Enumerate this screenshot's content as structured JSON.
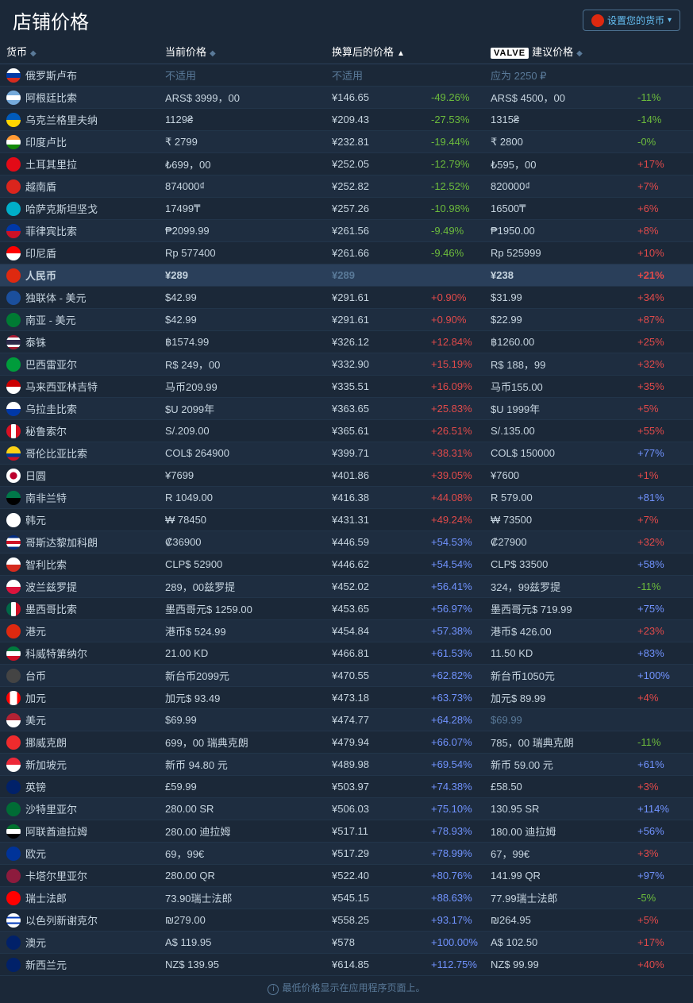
{
  "title": "店铺价格",
  "set_currency_button": "设置您的货币",
  "set_currency_flag_class": "flag-cn",
  "columns": {
    "currency": "货币",
    "current": "当前价格",
    "converted": "换算后的价格",
    "suggested_prefix_logo": "VALVE",
    "suggested": "建议价格"
  },
  "footer_note": "最低价格显示在应用程序页面上。",
  "colors": {
    "background": "#1b2838",
    "row_alt": "#1e2d40",
    "highlight_row": "#2a3f5a",
    "text_primary": "#c6d4df",
    "text_heading": "#ffffff",
    "muted": "#5a7a99",
    "pct_green": "#6cbb3c",
    "pct_red": "#e24a4a",
    "pct_blue": "#7193ff",
    "link_blue": "#66c0f4"
  },
  "rows": [
    {
      "flag": "flag-ru",
      "name": "俄罗斯卢布",
      "current": "不适用",
      "current_muted": true,
      "converted": "不适用",
      "converted_muted": true,
      "pct": "",
      "pct_class": "",
      "suggested": "应为 2250 ₽",
      "suggested_muted": true,
      "sug_pct": "",
      "sug_pct_class": ""
    },
    {
      "flag": "flag-ar",
      "name": "阿根廷比索",
      "current": "ARS$ 3999，00",
      "converted": "¥146.65",
      "pct": "-49.26%",
      "pct_class": "pct-green",
      "suggested": "ARS$ 4500，00",
      "sug_pct": "-11%",
      "sug_pct_class": "pct-green"
    },
    {
      "flag": "flag-ua",
      "name": "乌克兰格里夫纳",
      "current": "1129₴",
      "converted": "¥209.43",
      "pct": "-27.53%",
      "pct_class": "pct-green",
      "suggested": "1315₴",
      "sug_pct": "-14%",
      "sug_pct_class": "pct-green"
    },
    {
      "flag": "flag-in",
      "name": "印度卢比",
      "current": "₹ 2799",
      "converted": "¥232.81",
      "pct": "-19.44%",
      "pct_class": "pct-green",
      "suggested": "₹ 2800",
      "sug_pct": "-0%",
      "sug_pct_class": "pct-green"
    },
    {
      "flag": "flag-tr",
      "name": "土耳其里拉",
      "current": "₺699，00",
      "converted": "¥252.05",
      "pct": "-12.79%",
      "pct_class": "pct-green",
      "suggested": "₺595，00",
      "sug_pct": "+17%",
      "sug_pct_class": "pct-red"
    },
    {
      "flag": "flag-vn",
      "name": "越南盾",
      "current": "874000₫",
      "converted": "¥252.82",
      "pct": "-12.52%",
      "pct_class": "pct-green",
      "suggested": "820000₫",
      "sug_pct": "+7%",
      "sug_pct_class": "pct-red"
    },
    {
      "flag": "flag-kz",
      "name": "哈萨克斯坦坚戈",
      "current": "17499₸",
      "converted": "¥257.26",
      "pct": "-10.98%",
      "pct_class": "pct-green",
      "suggested": "16500₸",
      "sug_pct": "+6%",
      "sug_pct_class": "pct-red"
    },
    {
      "flag": "flag-ph",
      "name": "菲律宾比索",
      "current": "₱2099.99",
      "converted": "¥261.56",
      "pct": "-9.49%",
      "pct_class": "pct-green",
      "suggested": "₱1950.00",
      "sug_pct": "+8%",
      "sug_pct_class": "pct-red"
    },
    {
      "flag": "flag-id",
      "name": "印尼盾",
      "current": "Rp 577400",
      "converted": "¥261.66",
      "pct": "-9.46%",
      "pct_class": "pct-green",
      "suggested": "Rp 525999",
      "sug_pct": "+10%",
      "sug_pct_class": "pct-red"
    },
    {
      "flag": "flag-cn",
      "name": "人民币",
      "current": "¥289",
      "converted": "¥289",
      "converted_muted": true,
      "pct": "",
      "pct_class": "",
      "suggested": "¥238",
      "sug_pct": "+21%",
      "sug_pct_class": "pct-red",
      "highlight": true
    },
    {
      "flag": "flag-cis",
      "name": "独联体 - 美元",
      "current": "$42.99",
      "converted": "¥291.61",
      "pct": "+0.90%",
      "pct_class": "pct-red",
      "suggested": "$31.99",
      "sug_pct": "+34%",
      "sug_pct_class": "pct-red"
    },
    {
      "flag": "flag-sa2",
      "name": "南亚 - 美元",
      "current": "$42.99",
      "converted": "¥291.61",
      "pct": "+0.90%",
      "pct_class": "pct-red",
      "suggested": "$22.99",
      "sug_pct": "+87%",
      "sug_pct_class": "pct-red"
    },
    {
      "flag": "flag-th",
      "name": "泰铢",
      "current": "฿1574.99",
      "converted": "¥326.12",
      "pct": "+12.84%",
      "pct_class": "pct-red",
      "suggested": "฿1260.00",
      "sug_pct": "+25%",
      "sug_pct_class": "pct-red"
    },
    {
      "flag": "flag-br",
      "name": "巴西雷亚尔",
      "current": "R$ 249，00",
      "converted": "¥332.90",
      "pct": "+15.19%",
      "pct_class": "pct-red",
      "suggested": "R$ 188，99",
      "sug_pct": "+32%",
      "sug_pct_class": "pct-red"
    },
    {
      "flag": "flag-my",
      "name": "马来西亚林吉特",
      "current": "马币209.99",
      "converted": "¥335.51",
      "pct": "+16.09%",
      "pct_class": "pct-red",
      "suggested": "马币155.00",
      "sug_pct": "+35%",
      "sug_pct_class": "pct-red"
    },
    {
      "flag": "flag-uy",
      "name": "乌拉圭比索",
      "current": "$U 2099年",
      "converted": "¥363.65",
      "pct": "+25.83%",
      "pct_class": "pct-red",
      "suggested": "$U 1999年",
      "sug_pct": "+5%",
      "sug_pct_class": "pct-red"
    },
    {
      "flag": "flag-pe",
      "name": "秘鲁索尔",
      "current": "S/.209.00",
      "converted": "¥365.61",
      "pct": "+26.51%",
      "pct_class": "pct-red",
      "suggested": "S/.135.00",
      "sug_pct": "+55%",
      "sug_pct_class": "pct-red"
    },
    {
      "flag": "flag-co",
      "name": "哥伦比亚比索",
      "current": "COL$ 264900",
      "converted": "¥399.71",
      "pct": "+38.31%",
      "pct_class": "pct-red",
      "suggested": "COL$ 150000",
      "sug_pct": "+77%",
      "sug_pct_class": "pct-blue"
    },
    {
      "flag": "flag-jp",
      "name": "日圆",
      "current": "¥7699",
      "converted": "¥401.86",
      "pct": "+39.05%",
      "pct_class": "pct-red",
      "suggested": "¥7600",
      "sug_pct": "+1%",
      "sug_pct_class": "pct-red"
    },
    {
      "flag": "flag-za",
      "name": "南非兰特",
      "current": "R 1049.00",
      "converted": "¥416.38",
      "pct": "+44.08%",
      "pct_class": "pct-red",
      "suggested": "R 579.00",
      "sug_pct": "+81%",
      "sug_pct_class": "pct-blue"
    },
    {
      "flag": "flag-kr",
      "name": "韩元",
      "current": "₩ 78450",
      "converted": "¥431.31",
      "pct": "+49.24%",
      "pct_class": "pct-red",
      "suggested": "₩ 73500",
      "sug_pct": "+7%",
      "sug_pct_class": "pct-red"
    },
    {
      "flag": "flag-cr",
      "name": "哥斯达黎加科朗",
      "current": "₡36900",
      "converted": "¥446.59",
      "pct": "+54.53%",
      "pct_class": "pct-blue",
      "suggested": "₡27900",
      "sug_pct": "+32%",
      "sug_pct_class": "pct-red"
    },
    {
      "flag": "flag-cl",
      "name": "智利比索",
      "current": "CLP$ 52900",
      "converted": "¥446.62",
      "pct": "+54.54%",
      "pct_class": "pct-blue",
      "suggested": "CLP$ 33500",
      "sug_pct": "+58%",
      "sug_pct_class": "pct-blue"
    },
    {
      "flag": "flag-pl",
      "name": "波兰兹罗提",
      "current": "289，00兹罗提",
      "converted": "¥452.02",
      "pct": "+56.41%",
      "pct_class": "pct-blue",
      "suggested": "324，99兹罗提",
      "sug_pct": "-11%",
      "sug_pct_class": "pct-green"
    },
    {
      "flag": "flag-mx",
      "name": "墨西哥比索",
      "current": "墨西哥元$ 1259.00",
      "converted": "¥453.65",
      "pct": "+56.97%",
      "pct_class": "pct-blue",
      "suggested": "墨西哥元$ 719.99",
      "sug_pct": "+75%",
      "sug_pct_class": "pct-blue"
    },
    {
      "flag": "flag-hk",
      "name": "港元",
      "current": "港币$ 524.99",
      "converted": "¥454.84",
      "pct": "+57.38%",
      "pct_class": "pct-blue",
      "suggested": "港币$ 426.00",
      "sug_pct": "+23%",
      "sug_pct_class": "pct-red"
    },
    {
      "flag": "flag-kw",
      "name": "科威特第纳尔",
      "current": "21.00 KD",
      "converted": "¥466.81",
      "pct": "+61.53%",
      "pct_class": "pct-blue",
      "suggested": "11.50 KD",
      "sug_pct": "+83%",
      "sug_pct_class": "pct-blue"
    },
    {
      "flag": "flag-tw",
      "name": "台币",
      "current": "新台币2099元",
      "converted": "¥470.55",
      "pct": "+62.82%",
      "pct_class": "pct-blue",
      "suggested": "新台币1050元",
      "sug_pct": "+100%",
      "sug_pct_class": "pct-blue"
    },
    {
      "flag": "flag-ca",
      "name": "加元",
      "current": "加元$ 93.49",
      "converted": "¥473.18",
      "pct": "+63.73%",
      "pct_class": "pct-blue",
      "suggested": "加元$ 89.99",
      "sug_pct": "+4%",
      "sug_pct_class": "pct-red"
    },
    {
      "flag": "flag-us",
      "name": "美元",
      "current": "$69.99",
      "converted": "¥474.77",
      "pct": "+64.28%",
      "pct_class": "pct-blue",
      "suggested": "$69.99",
      "suggested_muted": true,
      "sug_pct": "",
      "sug_pct_class": ""
    },
    {
      "flag": "flag-no",
      "name": "挪威克朗",
      "current": "699，00 瑞典克朗",
      "converted": "¥479.94",
      "pct": "+66.07%",
      "pct_class": "pct-blue",
      "suggested": "785，00 瑞典克朗",
      "sug_pct": "-11%",
      "sug_pct_class": "pct-green"
    },
    {
      "flag": "flag-sg",
      "name": "新加坡元",
      "current": "新币 94.80 元",
      "converted": "¥489.98",
      "pct": "+69.54%",
      "pct_class": "pct-blue",
      "suggested": "新币 59.00 元",
      "sug_pct": "+61%",
      "sug_pct_class": "pct-blue"
    },
    {
      "flag": "flag-gb",
      "name": "英镑",
      "current": "£59.99",
      "converted": "¥503.97",
      "pct": "+74.38%",
      "pct_class": "pct-blue",
      "suggested": "£58.50",
      "sug_pct": "+3%",
      "sug_pct_class": "pct-red"
    },
    {
      "flag": "flag-sa",
      "name": "沙特里亚尔",
      "current": "280.00 SR",
      "converted": "¥506.03",
      "pct": "+75.10%",
      "pct_class": "pct-blue",
      "suggested": "130.95 SR",
      "sug_pct": "+114%",
      "sug_pct_class": "pct-blue"
    },
    {
      "flag": "flag-ae",
      "name": "阿联酋迪拉姆",
      "current": "280.00 迪拉姆",
      "converted": "¥517.11",
      "pct": "+78.93%",
      "pct_class": "pct-blue",
      "suggested": "180.00 迪拉姆",
      "sug_pct": "+56%",
      "sug_pct_class": "pct-blue"
    },
    {
      "flag": "flag-eu",
      "name": "欧元",
      "current": "69，99€",
      "converted": "¥517.29",
      "pct": "+78.99%",
      "pct_class": "pct-blue",
      "suggested": "67，99€",
      "sug_pct": "+3%",
      "sug_pct_class": "pct-red"
    },
    {
      "flag": "flag-qa",
      "name": "卡塔尔里亚尔",
      "current": "280.00 QR",
      "converted": "¥522.40",
      "pct": "+80.76%",
      "pct_class": "pct-blue",
      "suggested": "141.99 QR",
      "sug_pct": "+97%",
      "sug_pct_class": "pct-blue"
    },
    {
      "flag": "flag-ch",
      "name": "瑞士法郎",
      "current": "73.90瑞士法郎",
      "converted": "¥545.15",
      "pct": "+88.63%",
      "pct_class": "pct-blue",
      "suggested": "77.99瑞士法郎",
      "sug_pct": "-5%",
      "sug_pct_class": "pct-green"
    },
    {
      "flag": "flag-il",
      "name": "以色列新谢克尔",
      "current": "₪279.00",
      "converted": "¥558.25",
      "pct": "+93.17%",
      "pct_class": "pct-blue",
      "suggested": "₪264.95",
      "sug_pct": "+5%",
      "sug_pct_class": "pct-red"
    },
    {
      "flag": "flag-au",
      "name": "澳元",
      "current": "A$ 119.95",
      "converted": "¥578",
      "pct": "+100.00%",
      "pct_class": "pct-blue",
      "suggested": "A$ 102.50",
      "sug_pct": "+17%",
      "sug_pct_class": "pct-red"
    },
    {
      "flag": "flag-nz",
      "name": "新西兰元",
      "current": "NZ$ 139.95",
      "converted": "¥614.85",
      "pct": "+112.75%",
      "pct_class": "pct-blue",
      "suggested": "NZ$ 99.99",
      "sug_pct": "+40%",
      "sug_pct_class": "pct-red"
    }
  ]
}
